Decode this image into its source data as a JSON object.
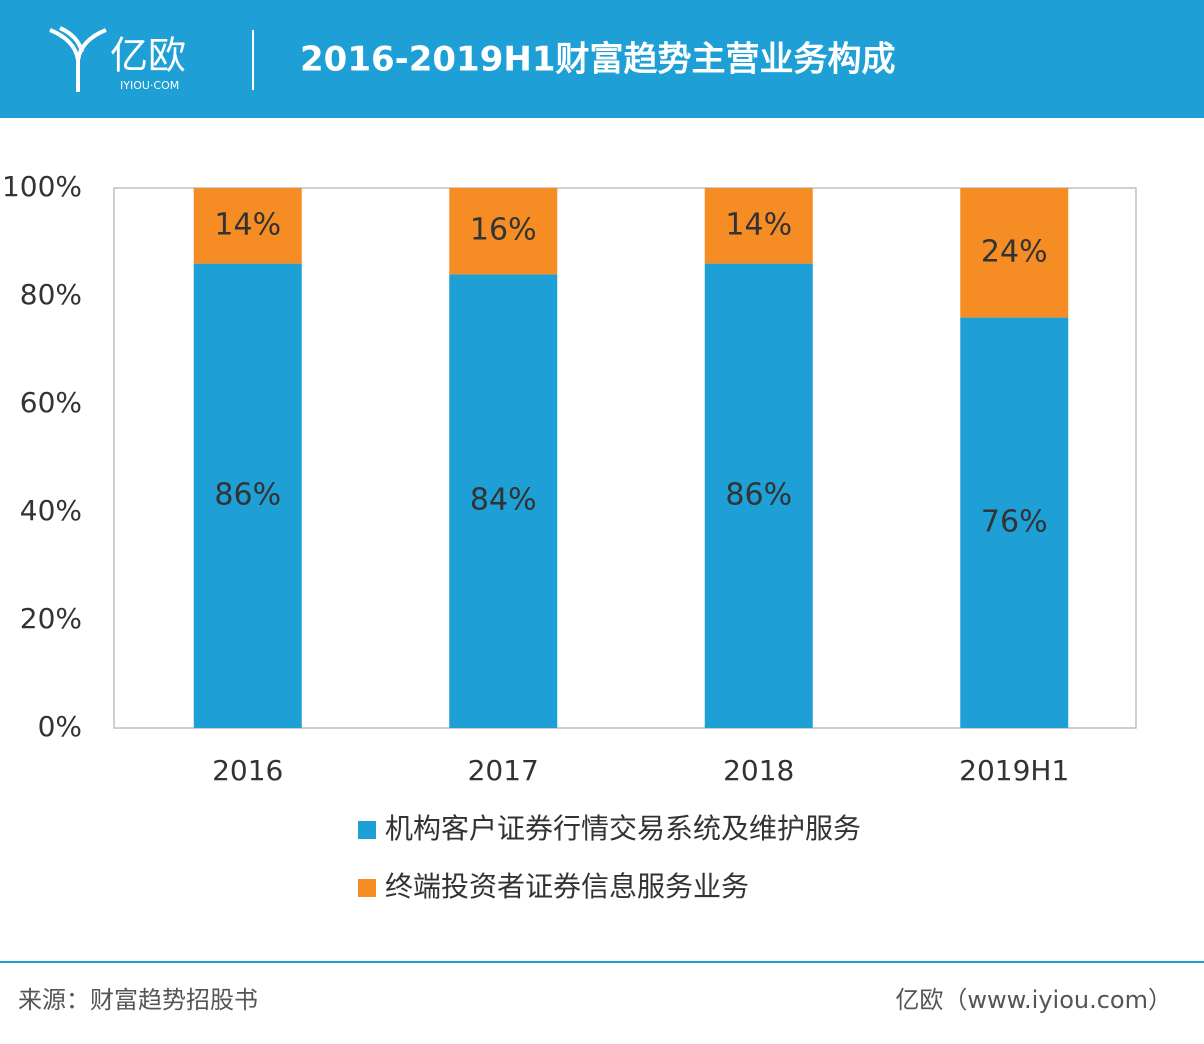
{
  "header": {
    "logo": "亿欧",
    "logo_sub": "IYIOU·COM"
  },
  "chart_data": {
    "type": "stacked_bar",
    "title": "2016-2019H1财富趋势主营业务构成",
    "categories": [
      "2016",
      "2017",
      "2018",
      "2019H1"
    ],
    "series": [
      {
        "name": "机构客户证券行情交易系统及维护服务",
        "color": "#1e9fd5",
        "values": [
          86,
          84,
          86,
          76
        ],
        "value_labels": [
          "86%",
          "84%",
          "86%",
          "76%"
        ]
      },
      {
        "name": "终端投资者证券信息服务业务",
        "color": "#f68d24",
        "values": [
          14,
          16,
          14,
          24
        ],
        "value_labels": [
          "14%",
          "16%",
          "14%",
          "24%"
        ]
      }
    ],
    "ylim": [
      0,
      100
    ],
    "yticks": [
      {
        "value": 0,
        "label": "0%"
      },
      {
        "value": 20,
        "label": "20%"
      },
      {
        "value": 40,
        "label": "40%"
      },
      {
        "value": 60,
        "label": "60%"
      },
      {
        "value": 80,
        "label": "80%"
      },
      {
        "value": 100,
        "label": "100%"
      }
    ],
    "grid": false,
    "legend": "bottom"
  },
  "footer": {
    "source": "来源：财富趋势招股书",
    "credit": "亿欧（www.iyiou.com）"
  }
}
